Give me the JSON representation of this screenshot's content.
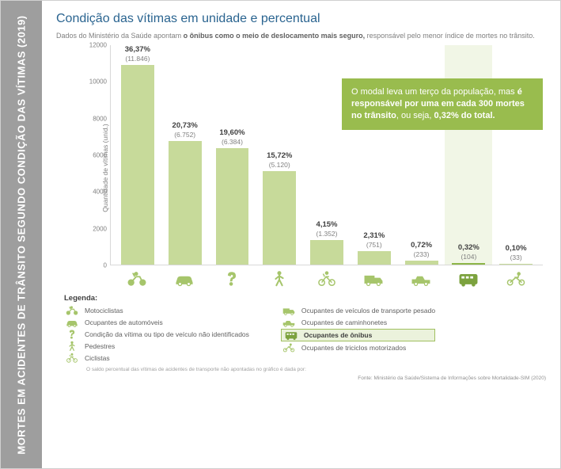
{
  "sidebar_title": "MORTES EM ACIDENTES DE TRÂNSITO SEGUNDO CONDIÇÃO DAS VÍTIMAS (2019)",
  "title": "Condição das vítimas em unidade e percentual",
  "subtitle_pre": "Dados do Ministério da Saúde apontam ",
  "subtitle_bold": "o ônibus como o meio de deslocamento mais seguro,",
  "subtitle_post": " responsável pelo menor índice de mortes no trânsito.",
  "callout_a": "O modal leva um terço da população, mas ",
  "callout_b": "é responsável por uma em cada 300 mortes no trânsito",
  "callout_c": ", ou seja, ",
  "callout_d": "0,32% do total.",
  "chart": {
    "type": "bar",
    "ylabel": "Quantidade de vítimas (unid.)",
    "ylim": [
      0,
      12000
    ],
    "yticks": [
      0,
      2000,
      4000,
      6000,
      8000,
      10000,
      12000
    ],
    "bar_color": "#c7da9a",
    "highlight_color": "#8db648",
    "grid_color": "#d8d8d8",
    "background_color": "#ffffff",
    "label_fontsize_pct": 9.5,
    "label_fontsize_val": 8.5,
    "highlight_index": 7,
    "bars": [
      {
        "pct": "36,37%",
        "val": "(11.846)",
        "num": 11846,
        "icon": "moto",
        "legend": "Motociclistas"
      },
      {
        "pct": "20,73%",
        "val": "(6.752)",
        "num": 6752,
        "icon": "car",
        "legend": "Ocupantes de automóveis"
      },
      {
        "pct": "19,60%",
        "val": "(6.384)",
        "num": 6384,
        "icon": "quest",
        "legend": "Condição da vítima ou tipo de veículo não identificados"
      },
      {
        "pct": "15,72%",
        "val": "(5.120)",
        "num": 5120,
        "icon": "ped",
        "legend": "Pedestres"
      },
      {
        "pct": "4,15%",
        "val": "(1.352)",
        "num": 1352,
        "icon": "bike",
        "legend": "Ciclistas"
      },
      {
        "pct": "2,31%",
        "val": "(751)",
        "num": 751,
        "icon": "truck",
        "legend": "Ocupantes de veículos de transporte pesado"
      },
      {
        "pct": "0,72%",
        "val": "(233)",
        "num": 233,
        "icon": "pickup",
        "legend": "Ocupantes de caminhonetes"
      },
      {
        "pct": "0,32%",
        "val": "(104)",
        "num": 104,
        "icon": "bus",
        "legend": "Ocupantes de ônibus"
      },
      {
        "pct": "0,10%",
        "val": "(33)",
        "num": 33,
        "icon": "trike",
        "legend": "Ocupantes de triciclos motorizados"
      }
    ]
  },
  "legend_title": "Legenda:",
  "footnote": "O saldo percentual das vítimas de acidentes de transporte não apontadas no gráfico é dada por:",
  "source": "Fonte: Ministério da Saúde/Sistema de Informações sobre Mortalidade-SIM (2020)",
  "icon_color": "#a6c56b",
  "icon_color_dark": "#7ca23e"
}
